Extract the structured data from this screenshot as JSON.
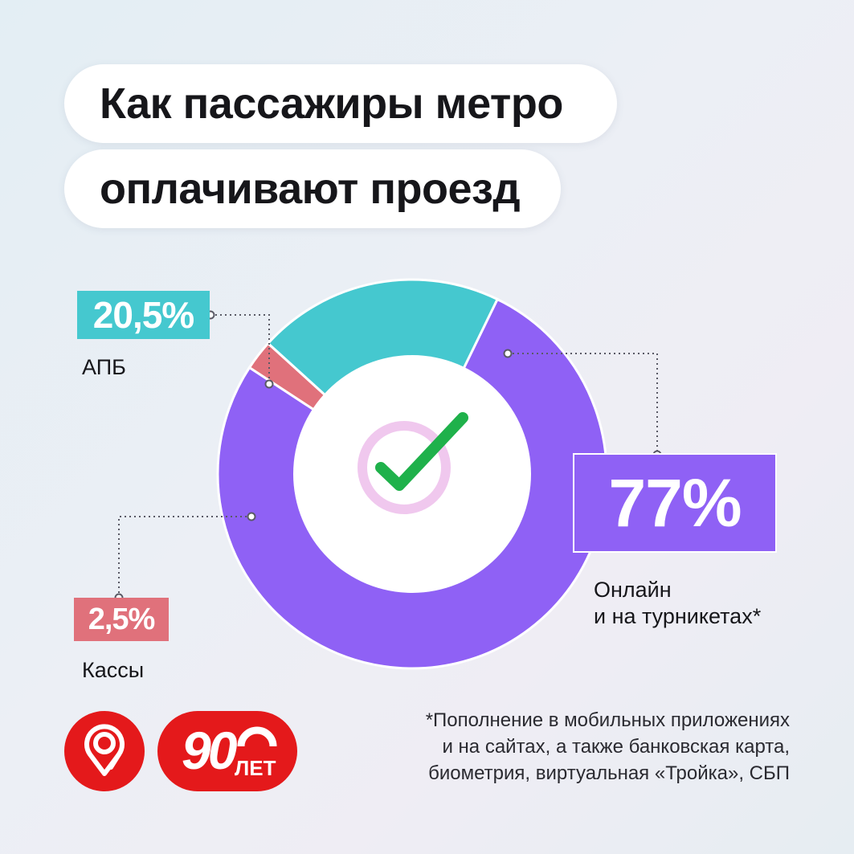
{
  "title": {
    "line1": "Как пассажиры метро",
    "line2": "оплачивают проезд"
  },
  "chart_data": {
    "type": "pie",
    "title": "Как пассажиры метро оплачивают проезд",
    "slices": [
      {
        "label": "Онлайн и на турникетах*",
        "value": 77,
        "display": "77%",
        "color": "#8f61f5"
      },
      {
        "label": "АПБ",
        "value": 20.5,
        "display": "20,5%",
        "color": "#45c8cf"
      },
      {
        "label": "Кассы",
        "value": 2.5,
        "display": "2,5%",
        "color": "#e0717b"
      }
    ]
  },
  "labels": {
    "apb_value": "20,5%",
    "apb_name": "АПБ",
    "kassy_value": "2,5%",
    "kassy_name": "Кассы",
    "online_value": "77%",
    "online_name_line1": "Онлайн",
    "online_name_line2": "и на турникетах*"
  },
  "footnote": {
    "line1": "*Пополнение в мобильных приложениях",
    "line2": "и на сайтах, а также банковская карта,",
    "line3": "биометрия, виртуальная «Тройка», СБП"
  },
  "logos": {
    "anniversary_number": "90",
    "anniversary_word": "ЛЕТ"
  },
  "colors": {
    "online": "#8f61f5",
    "apb": "#45c8cf",
    "kassy": "#e0717b",
    "brand_red": "#e4191b",
    "check_green": "#1fb14b",
    "check_ring": "#f0c8ee"
  },
  "icons": {
    "center": "checkmark-icon",
    "metro_logo": "moscow-metro-logo-icon"
  }
}
